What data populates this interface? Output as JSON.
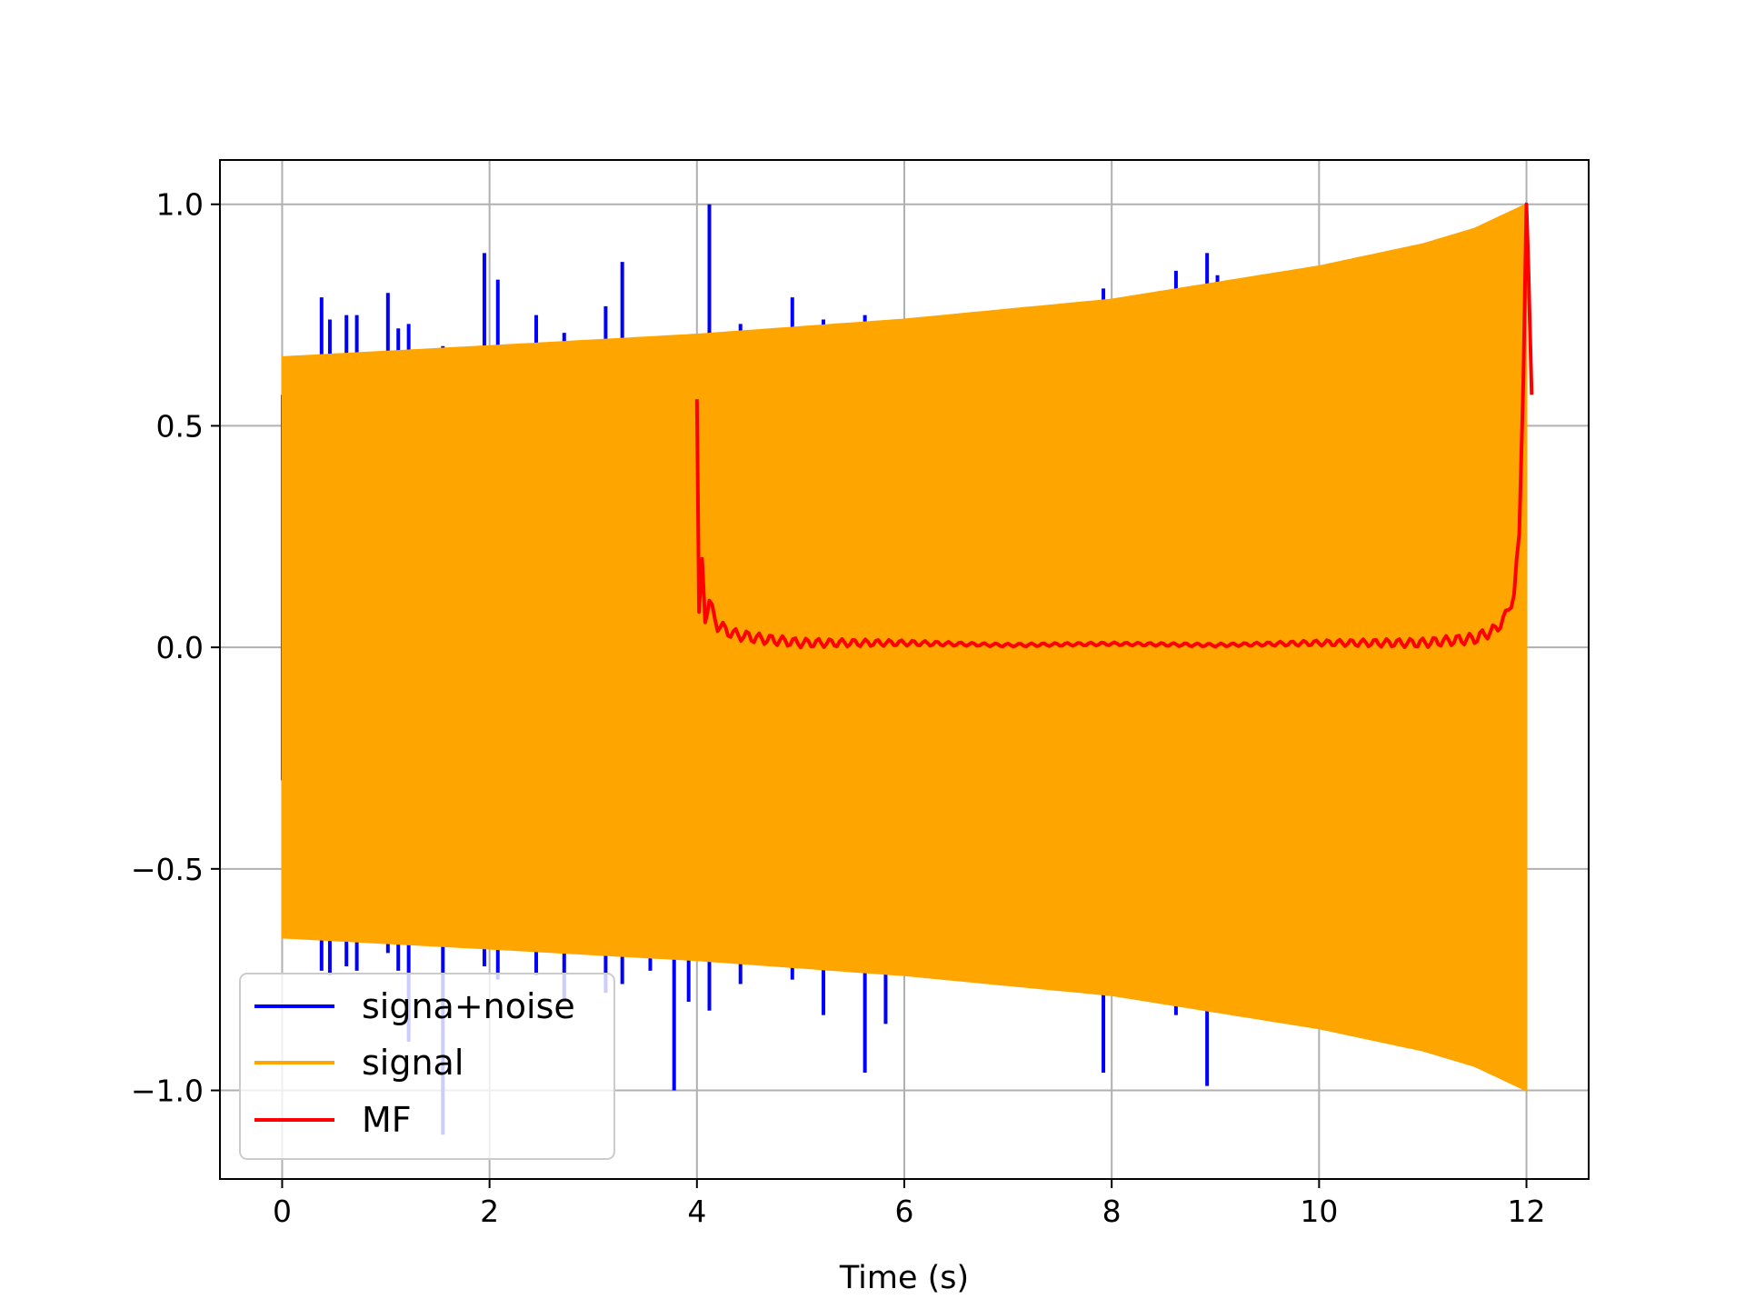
{
  "chart_data": {
    "type": "line",
    "title": "",
    "xlabel": "Time (s)",
    "ylabel": "",
    "xlim": [
      -0.6,
      12.6
    ],
    "ylim": [
      -1.2,
      1.1
    ],
    "grid": true,
    "legend_position": "lower-left",
    "x_ticks": [
      0,
      2,
      4,
      6,
      8,
      10,
      12
    ],
    "x_tick_labels": [
      "0",
      "2",
      "4",
      "6",
      "8",
      "10",
      "12"
    ],
    "y_ticks": [
      1.0,
      0.5,
      0.0,
      -0.5,
      -1.0
    ],
    "y_tick_labels": [
      "1.0",
      "0.5",
      "0.0",
      "−0.5",
      "−1.0"
    ],
    "series": [
      {
        "name": "signa+noise",
        "color": "#0000ff",
        "spikes": [
          {
            "x": 0.38,
            "low": -0.73,
            "high": 0.79
          },
          {
            "x": 0.46,
            "low": -0.74,
            "high": 0.74
          },
          {
            "x": 0.62,
            "low": -0.72,
            "high": 0.75
          },
          {
            "x": 0.72,
            "low": -0.73,
            "high": 0.75
          },
          {
            "x": 1.02,
            "low": -0.69,
            "high": 0.8
          },
          {
            "x": 1.12,
            "low": -0.73,
            "high": 0.72
          },
          {
            "x": 1.22,
            "low": -0.89,
            "high": 0.73
          },
          {
            "x": 1.55,
            "low": -1.1,
            "high": 0.68
          },
          {
            "x": 1.95,
            "low": -0.72,
            "high": 0.89
          },
          {
            "x": 2.08,
            "low": -0.75,
            "high": 0.83
          },
          {
            "x": 2.45,
            "low": -0.74,
            "high": 0.75
          },
          {
            "x": 2.72,
            "low": -0.8,
            "high": 0.71
          },
          {
            "x": 3.12,
            "low": -0.78,
            "high": 0.77
          },
          {
            "x": 3.28,
            "low": -0.76,
            "high": 0.87
          },
          {
            "x": 3.55,
            "low": -0.73,
            "high": 0.69
          },
          {
            "x": 3.78,
            "low": -1.0,
            "high": 0.7
          },
          {
            "x": 3.92,
            "low": -0.8,
            "high": 0.7
          },
          {
            "x": 4.12,
            "low": -0.82,
            "high": 1.0
          },
          {
            "x": 4.42,
            "low": -0.76,
            "high": 0.73
          },
          {
            "x": 4.92,
            "low": -0.75,
            "high": 0.79
          },
          {
            "x": 5.22,
            "low": -0.83,
            "high": 0.74
          },
          {
            "x": 5.62,
            "low": -0.96,
            "high": 0.75
          },
          {
            "x": 5.82,
            "low": -0.85,
            "high": 0.73
          },
          {
            "x": 7.92,
            "low": -0.96,
            "high": 0.81
          },
          {
            "x": 8.62,
            "low": -0.83,
            "high": 0.85
          },
          {
            "x": 8.92,
            "low": -0.99,
            "high": 0.89
          },
          {
            "x": 9.02,
            "low": -0.79,
            "high": 0.84
          }
        ]
      },
      {
        "name": "signal",
        "color": "#ffa500",
        "x_range": [
          0,
          12
        ],
        "envelope_x": [
          0,
          2,
          4,
          6,
          8,
          10,
          11,
          11.5,
          12
        ],
        "envelope_amplitude": [
          0.655,
          0.68,
          0.706,
          0.74,
          0.785,
          0.86,
          0.91,
          0.945,
          1.0
        ]
      },
      {
        "name": "MF",
        "color": "#ff0000",
        "x": [
          4.0,
          4.02,
          4.05,
          4.08,
          4.12,
          4.2,
          4.35,
          4.6,
          5.0,
          6.0,
          7.0,
          8.0,
          9.0,
          10.0,
          11.0,
          11.5,
          11.7,
          11.8,
          11.88,
          11.93,
          11.97,
          12.0,
          12.02,
          12.05
        ],
        "y": [
          0.56,
          0.08,
          0.2,
          0.07,
          0.1,
          0.05,
          0.03,
          0.02,
          0.01,
          0.01,
          0.005,
          0.008,
          0.005,
          0.01,
          0.01,
          0.02,
          0.04,
          0.07,
          0.12,
          0.25,
          0.6,
          1.0,
          0.85,
          0.57
        ]
      }
    ]
  }
}
